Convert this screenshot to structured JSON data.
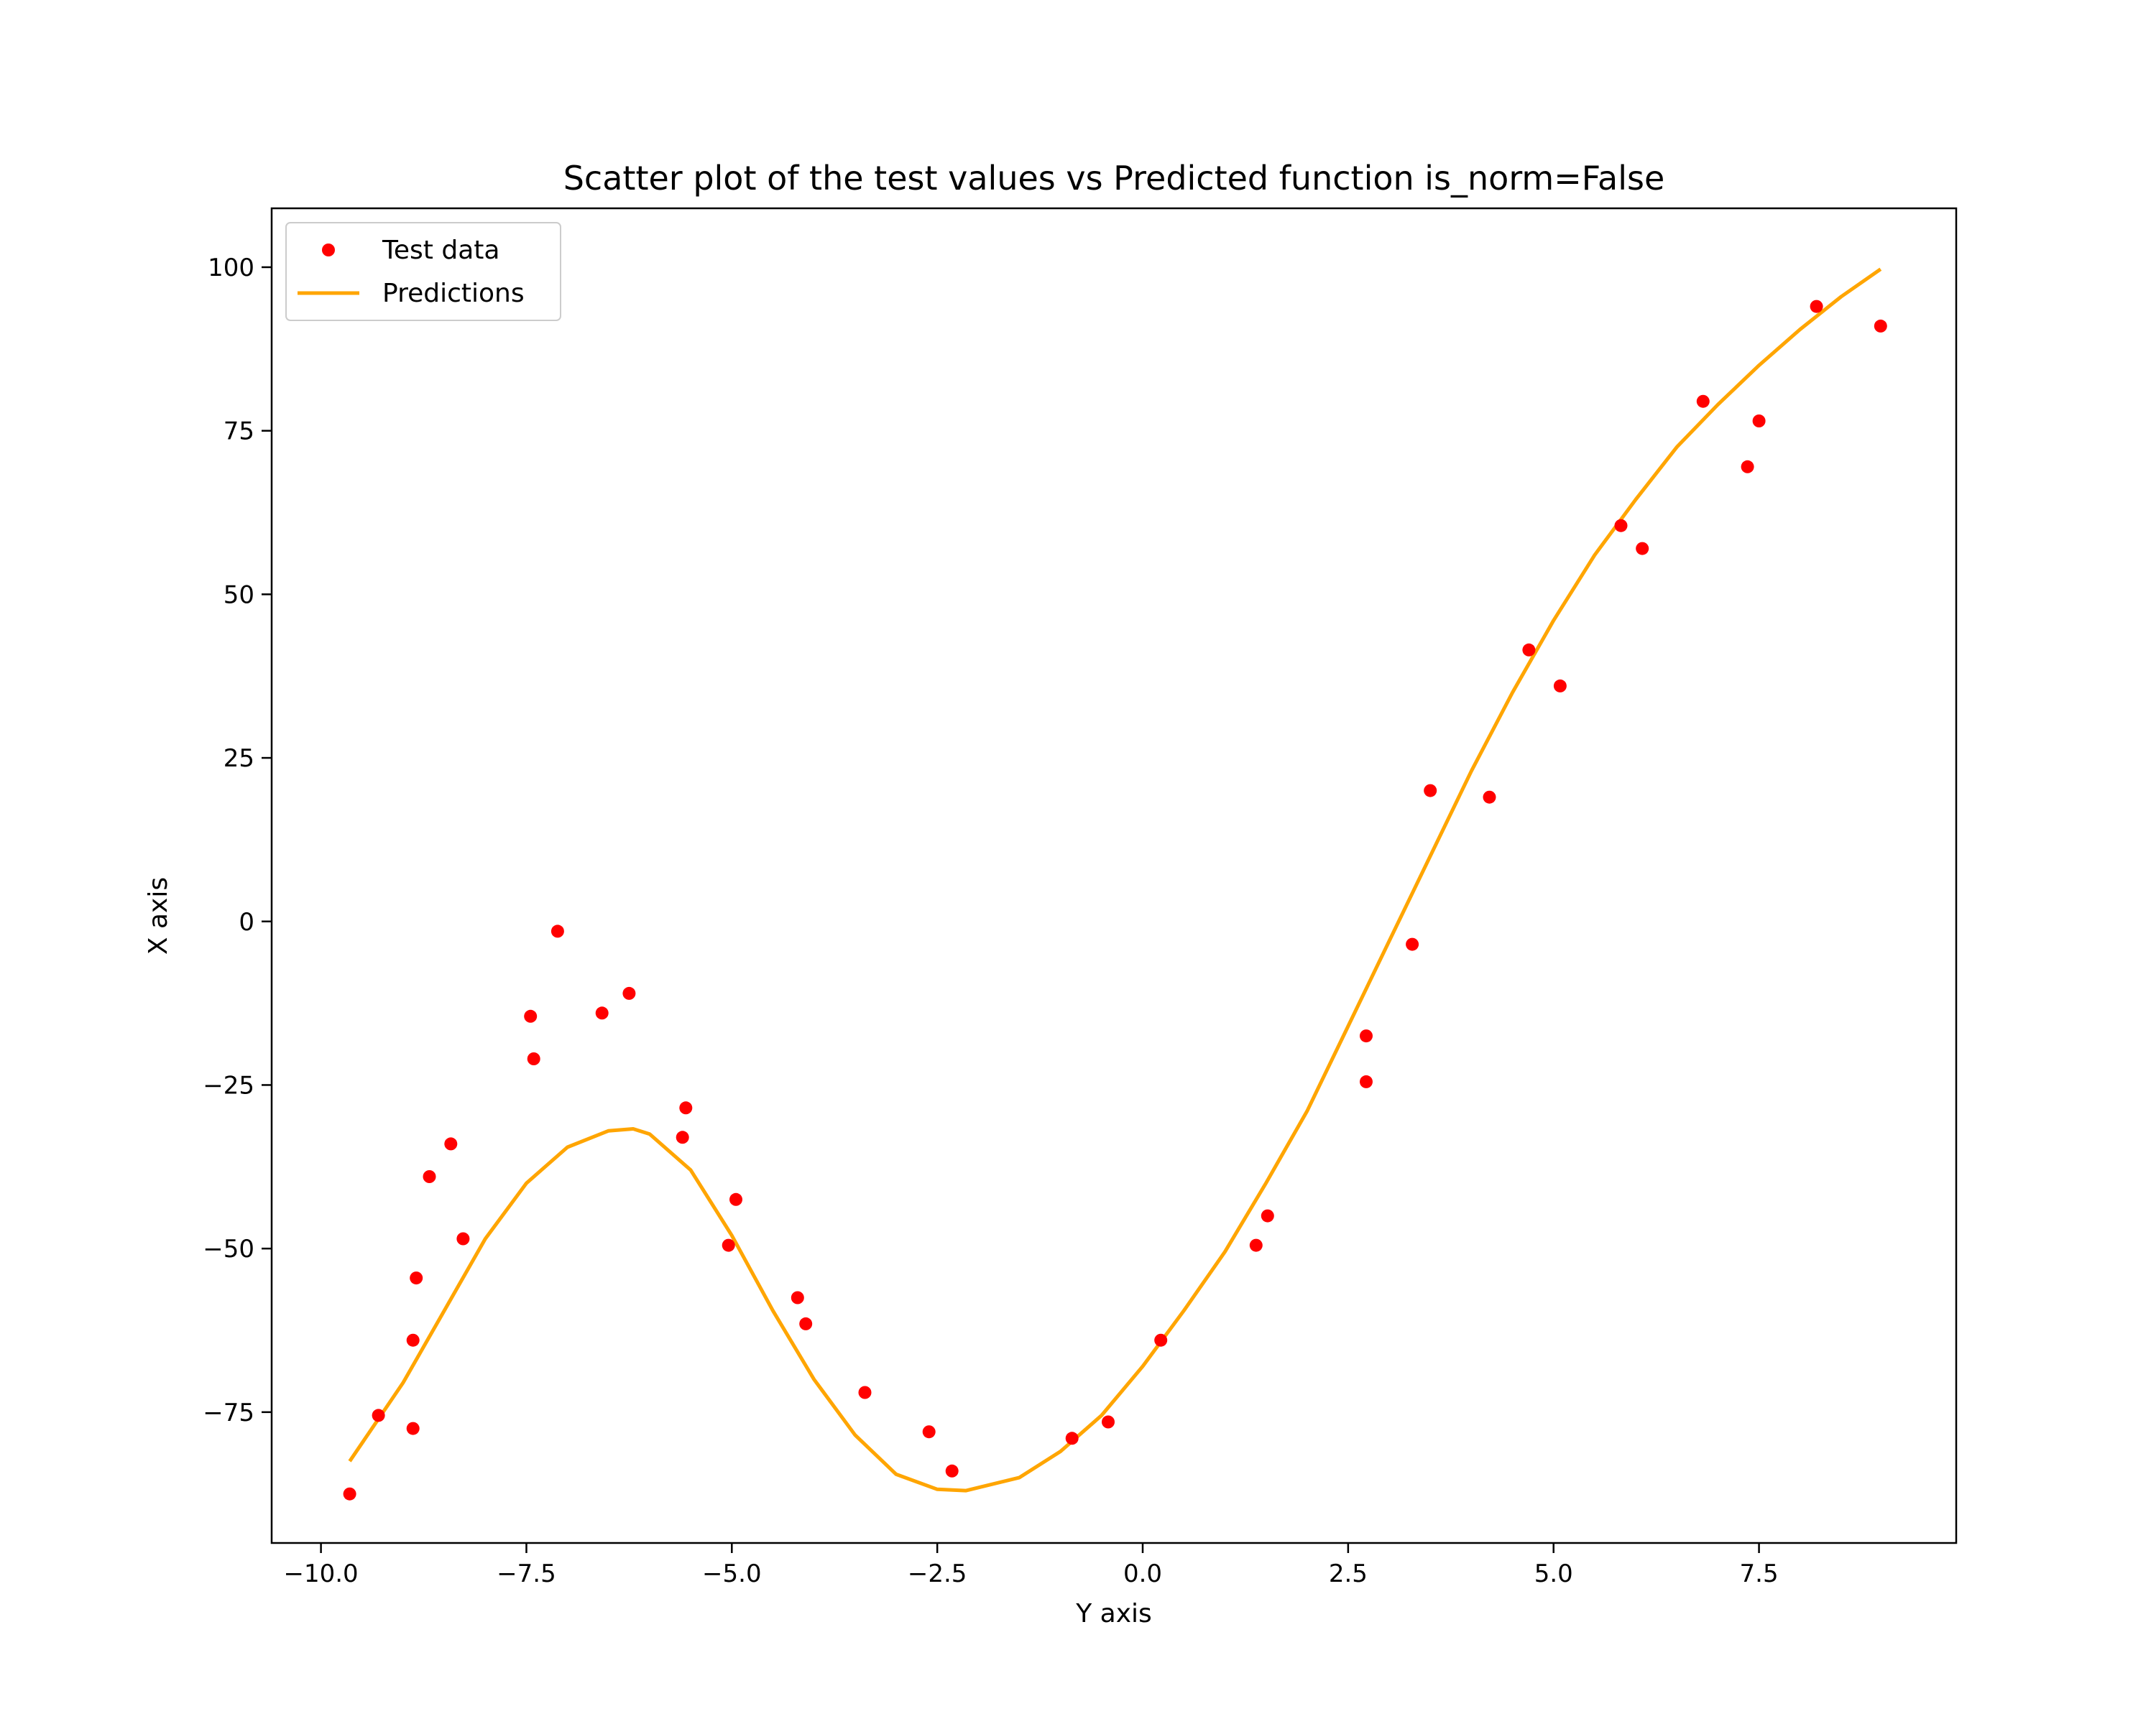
{
  "chart_data": {
    "type": "scatter",
    "title": "Scatter plot of the test values vs Predicted function is_norm=False",
    "xlabel": "Y axis",
    "ylabel": "X axis",
    "xlim": [
      -10.6,
      9.9
    ],
    "ylim": [
      -95,
      109
    ],
    "xticks": [
      -10.0,
      -7.5,
      -5.0,
      -2.5,
      0.0,
      2.5,
      5.0,
      7.5
    ],
    "xtick_labels": [
      "−10.0",
      "−7.5",
      "−5.0",
      "−2.5",
      "0.0",
      "2.5",
      "5.0",
      "7.5"
    ],
    "yticks": [
      -75,
      -50,
      -25,
      0,
      25,
      50,
      75,
      100
    ],
    "ytick_labels": [
      "−75",
      "−50",
      "−25",
      "0",
      "25",
      "50",
      "75",
      "100"
    ],
    "grid": false,
    "legend": {
      "placement": "top-left"
    },
    "series": [
      {
        "name": "Test data",
        "kind": "scatter",
        "color": "#ff0000",
        "points": [
          [
            -9.65,
            -87.5
          ],
          [
            -9.3,
            -75.5
          ],
          [
            -8.88,
            -77.5
          ],
          [
            -8.88,
            -64.0
          ],
          [
            -8.84,
            -54.5
          ],
          [
            -8.68,
            -39.0
          ],
          [
            -8.42,
            -34.0
          ],
          [
            -8.27,
            -48.5
          ],
          [
            -7.45,
            -14.5
          ],
          [
            -7.41,
            -21.0
          ],
          [
            -7.12,
            -1.5
          ],
          [
            -6.58,
            -14.0
          ],
          [
            -6.25,
            -11.0
          ],
          [
            -5.6,
            -33.0
          ],
          [
            -5.56,
            -28.5
          ],
          [
            -5.04,
            -49.5
          ],
          [
            -4.95,
            -42.5
          ],
          [
            -4.2,
            -57.5
          ],
          [
            -4.1,
            -61.5
          ],
          [
            -3.38,
            -72.0
          ],
          [
            -2.6,
            -78.0
          ],
          [
            -2.32,
            -84.0
          ],
          [
            -0.86,
            -79.0
          ],
          [
            -0.42,
            -76.5
          ],
          [
            0.22,
            -64.0
          ],
          [
            1.38,
            -49.5
          ],
          [
            1.52,
            -45.0
          ],
          [
            2.72,
            -17.5
          ],
          [
            2.72,
            -24.5
          ],
          [
            3.28,
            -3.5
          ],
          [
            3.5,
            20.0
          ],
          [
            4.22,
            19.0
          ],
          [
            4.7,
            41.5
          ],
          [
            5.08,
            36.0
          ],
          [
            5.82,
            60.5
          ],
          [
            6.08,
            57.0
          ],
          [
            6.82,
            79.5
          ],
          [
            7.36,
            69.5
          ],
          [
            7.5,
            76.5
          ],
          [
            8.2,
            94.0
          ],
          [
            8.98,
            91.0
          ]
        ]
      },
      {
        "name": "Predictions",
        "kind": "line",
        "color": "#ffa500",
        "points": [
          [
            -9.65,
            -82.5
          ],
          [
            -9.0,
            -70.5
          ],
          [
            -8.5,
            -59.5
          ],
          [
            -8.0,
            -48.5
          ],
          [
            -7.5,
            -40.0
          ],
          [
            -7.0,
            -34.5
          ],
          [
            -6.5,
            -32.0
          ],
          [
            -6.2,
            -31.7
          ],
          [
            -6.0,
            -32.5
          ],
          [
            -5.5,
            -38.0
          ],
          [
            -5.0,
            -48.0
          ],
          [
            -4.5,
            -59.5
          ],
          [
            -4.0,
            -70.0
          ],
          [
            -3.5,
            -78.5
          ],
          [
            -3.0,
            -84.5
          ],
          [
            -2.5,
            -86.8
          ],
          [
            -2.15,
            -87.0
          ],
          [
            -1.5,
            -85.0
          ],
          [
            -1.0,
            -81.0
          ],
          [
            -0.5,
            -75.5
          ],
          [
            0.0,
            -68.0
          ],
          [
            0.5,
            -59.5
          ],
          [
            1.0,
            -50.5
          ],
          [
            1.5,
            -40.0
          ],
          [
            2.0,
            -29.0
          ],
          [
            2.5,
            -16.0
          ],
          [
            3.0,
            -3.0
          ],
          [
            3.5,
            10.0
          ],
          [
            4.0,
            23.0
          ],
          [
            4.5,
            35.0
          ],
          [
            5.0,
            46.0
          ],
          [
            5.5,
            56.0
          ],
          [
            6.0,
            64.5
          ],
          [
            6.5,
            72.5
          ],
          [
            7.0,
            79.0
          ],
          [
            7.5,
            85.0
          ],
          [
            8.0,
            90.5
          ],
          [
            8.5,
            95.5
          ],
          [
            8.98,
            99.7
          ]
        ]
      }
    ]
  }
}
